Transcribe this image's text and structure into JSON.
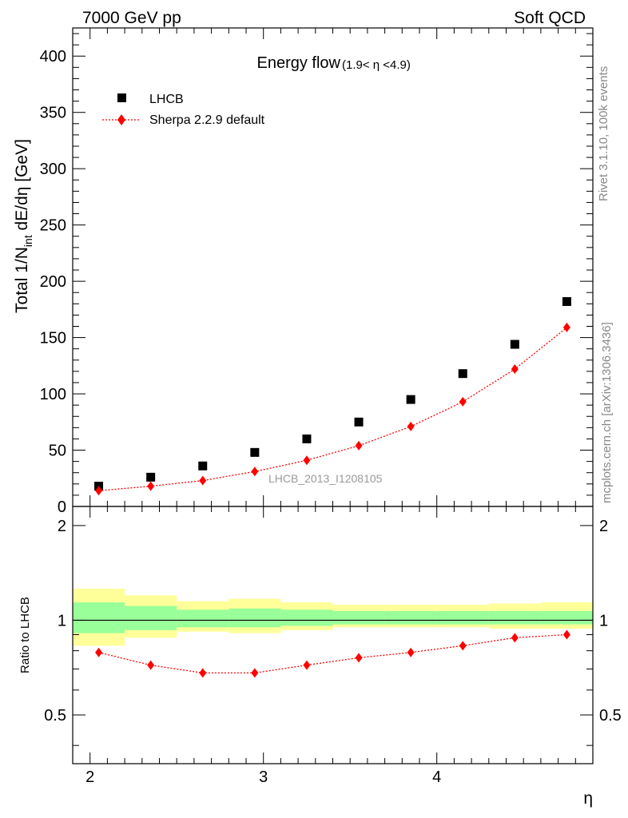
{
  "header": {
    "left": "7000 GeV pp",
    "right": "Soft QCD"
  },
  "side_labels": {
    "top": "Rivet 3.1.10,  100k events",
    "bottom": "mcplots.cern.ch [arXiv:1306.3436]"
  },
  "watermark": "LHCB_2013_I1208105",
  "chart_data": [
    {
      "type": "scatter",
      "title_main": "Energy flow",
      "title_sub": "(1.9< η <4.9)",
      "ylabel": "Total 1/N",
      "ylabel_sub": "int",
      "ylabel_rest": " dE/dη [GeV]",
      "ylim": [
        0,
        425
      ],
      "yticks": [
        "0",
        "50",
        "100",
        "150",
        "200",
        "250",
        "300",
        "350",
        "400"
      ],
      "legend_position": "top-left",
      "series": [
        {
          "name": "LHCB",
          "color": "#000000",
          "marker": "square",
          "x": [
            2.05,
            2.35,
            2.65,
            2.95,
            3.25,
            3.55,
            3.85,
            4.15,
            4.45,
            4.75
          ],
          "y": [
            18,
            26,
            36,
            48,
            60,
            75,
            95,
            118,
            144,
            182
          ]
        },
        {
          "name": "Sherpa 2.2.9 default",
          "color": "#ff0000",
          "marker": "diamond",
          "line": "dotted",
          "x": [
            2.05,
            2.35,
            2.65,
            2.95,
            3.25,
            3.55,
            3.85,
            4.15,
            4.45,
            4.75
          ],
          "y": [
            14,
            18,
            23,
            31,
            41,
            54,
            71,
            93,
            122,
            159
          ]
        }
      ]
    },
    {
      "type": "line",
      "ylabel": "Ratio to LHCB",
      "xlabel": "η",
      "xlim": [
        1.9,
        4.9
      ],
      "xticks": [
        "2",
        "3",
        "4"
      ],
      "ylim": [
        0.35,
        2.3
      ],
      "yticks_left": [
        "0.5",
        "1",
        "2"
      ],
      "yticks_right": [
        "0.5",
        "1",
        "2"
      ],
      "reference": 1,
      "bands": {
        "bin_edges": [
          1.9,
          2.2,
          2.5,
          2.8,
          3.1,
          3.4,
          3.7,
          4.0,
          4.3,
          4.6,
          4.9
        ],
        "yellow_color": "#ffff99",
        "green_color": "#99ff99",
        "yellow_low": [
          0.83,
          0.88,
          0.92,
          0.91,
          0.93,
          0.95,
          0.95,
          0.95,
          0.94,
          0.94
        ],
        "yellow_high": [
          1.26,
          1.2,
          1.15,
          1.17,
          1.14,
          1.12,
          1.12,
          1.12,
          1.13,
          1.14
        ],
        "green_low": [
          0.91,
          0.93,
          0.95,
          0.95,
          0.96,
          0.97,
          0.97,
          0.97,
          0.97,
          0.97
        ],
        "green_high": [
          1.14,
          1.11,
          1.08,
          1.09,
          1.08,
          1.07,
          1.07,
          1.07,
          1.07,
          1.07
        ]
      },
      "series": [
        {
          "name": "Sherpa 2.2.9 default",
          "color": "#ff0000",
          "marker": "diamond",
          "line": "dotted",
          "x": [
            2.05,
            2.35,
            2.65,
            2.95,
            3.25,
            3.55,
            3.85,
            4.15,
            4.45,
            4.75
          ],
          "y": [
            0.79,
            0.72,
            0.68,
            0.68,
            0.72,
            0.76,
            0.79,
            0.83,
            0.88,
            0.9
          ]
        }
      ]
    }
  ]
}
